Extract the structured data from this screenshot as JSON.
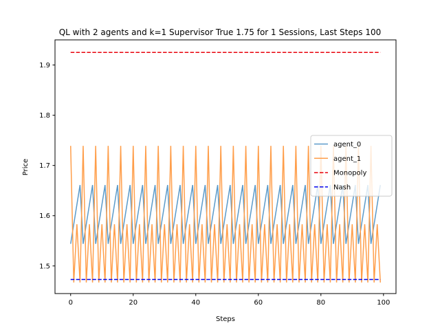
{
  "chart_data": {
    "type": "line",
    "title": "QL with 2 agents and k=1 Supervisor True 1.75  for 1 Sessions, Last Steps 100",
    "xlabel": "Steps",
    "ylabel": "Price",
    "xlim": [
      -5,
      104
    ],
    "ylim": [
      1.445,
      1.95
    ],
    "xticks": [
      0,
      20,
      40,
      60,
      80,
      100
    ],
    "yticks": [
      1.5,
      1.6,
      1.7,
      1.8,
      1.9
    ],
    "grid": false,
    "legend": "right",
    "agent_0": {
      "pattern": [
        1.544,
        1.583,
        1.622,
        1.661
      ],
      "phase": 0
    },
    "agent_1": {
      "pattern": [
        1.739,
        1.467,
        1.583,
        1.467
      ],
      "phase": 0,
      "overrides": {
        "99": 1.467
      }
    },
    "series": [
      {
        "name": "agent_0",
        "color": "#5b9ac9",
        "style": "solid"
      },
      {
        "name": "agent_1",
        "color": "#ff9e4a",
        "style": "solid"
      },
      {
        "name": "Monopoly",
        "color": "#e8000b",
        "style": "dashed",
        "value": 1.925
      },
      {
        "name": "Nash",
        "color": "#0000ee",
        "style": "dashed",
        "value": 1.473
      }
    ],
    "x_range": [
      0,
      99
    ]
  }
}
